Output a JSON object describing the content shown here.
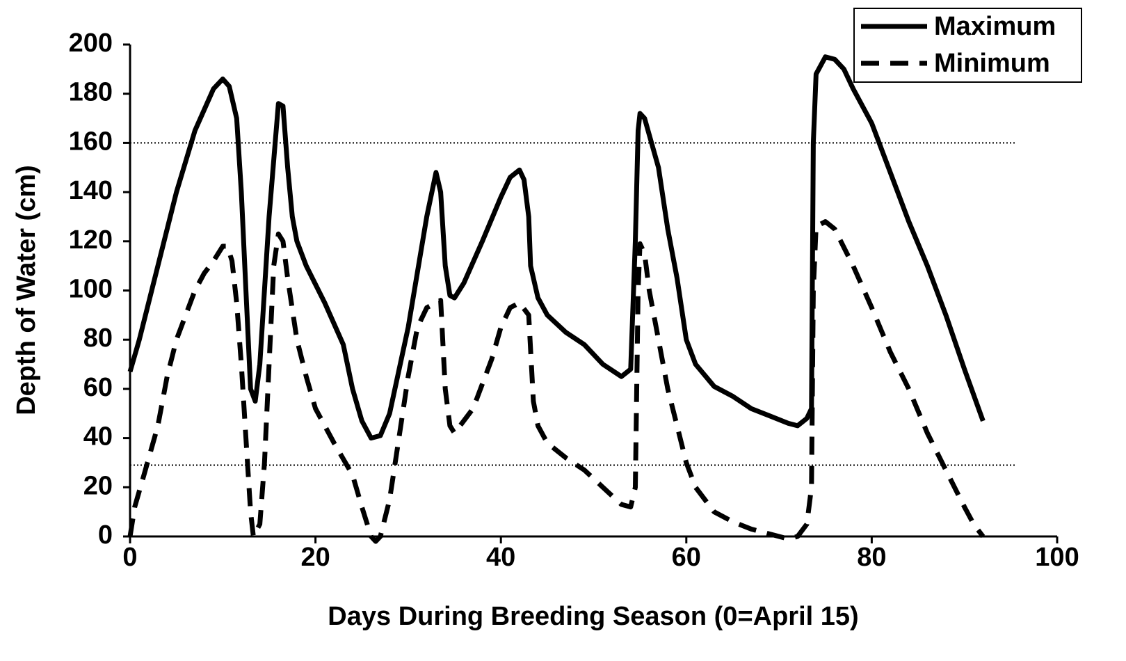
{
  "chart_data": {
    "type": "line",
    "xlabel": "Days During Breeding Season (0=April 15)",
    "ylabel": "Depth of Water (cm)",
    "xlim": [
      0,
      100
    ],
    "xticks": [
      0,
      20,
      40,
      60,
      80,
      100
    ],
    "ylim": [
      0,
      200
    ],
    "yticks": [
      0,
      20,
      40,
      60,
      80,
      100,
      120,
      140,
      160,
      180,
      200
    ],
    "reference_lines": [
      160,
      29
    ],
    "legend": "upper right",
    "series": [
      {
        "name": "Maximum",
        "color": "#000000",
        "style": "solid",
        "x": [
          0,
          1,
          3,
          5,
          7,
          9,
          10,
          10.7,
          11.5,
          12,
          12.5,
          13,
          13.5,
          14,
          15,
          16,
          16.5,
          17,
          17.5,
          18,
          19,
          21,
          23,
          24,
          25,
          26,
          27,
          28,
          30,
          32,
          33,
          33.5,
          34,
          34.5,
          35,
          36,
          38,
          40,
          41,
          42,
          42.5,
          43,
          43.2,
          44,
          45,
          47,
          49,
          51,
          53,
          54,
          54.5,
          54.8,
          55,
          55.5,
          57,
          58,
          59,
          60,
          61,
          63,
          65,
          67,
          69,
          71,
          72,
          73,
          73.5,
          73.7,
          74,
          75,
          76,
          77,
          78,
          80,
          82,
          84,
          86,
          88,
          90,
          92
        ],
        "values": [
          67,
          80,
          110,
          140,
          165,
          182,
          186,
          183,
          170,
          140,
          100,
          60,
          55,
          70,
          130,
          176,
          175,
          150,
          130,
          120,
          110,
          95,
          78,
          60,
          47,
          40,
          41,
          50,
          85,
          130,
          148,
          140,
          110,
          98,
          97,
          103,
          120,
          138,
          146,
          149,
          145,
          130,
          110,
          97,
          90,
          83,
          78,
          70,
          65,
          68,
          120,
          165,
          172,
          170,
          150,
          125,
          105,
          80,
          70,
          61,
          57,
          52,
          49,
          46,
          45,
          48,
          52,
          160,
          188,
          195,
          194,
          190,
          182,
          168,
          148,
          128,
          110,
          90,
          68,
          47
        ]
      },
      {
        "name": "Minimum",
        "color": "#000000",
        "style": "dashed",
        "x": [
          0,
          0.5,
          1.5,
          3,
          4,
          5,
          6,
          7,
          8,
          9,
          10,
          10.5,
          11,
          11.5,
          12,
          12.5,
          13,
          13.3,
          14,
          14.5,
          15,
          15.5,
          16,
          16.5,
          17,
          18,
          19,
          20,
          22,
          24,
          25,
          26,
          26.5,
          27,
          28,
          29,
          30,
          31,
          32,
          33,
          33.5,
          34,
          34.5,
          35,
          37,
          39,
          40,
          41,
          42,
          43,
          43.5,
          44,
          45,
          47,
          49,
          51,
          53,
          54,
          54.5,
          54.8,
          55,
          55.5,
          56,
          57,
          58,
          59,
          60,
          61,
          63,
          65,
          67,
          69,
          71,
          72,
          73,
          73.5,
          73.7,
          74,
          75,
          76,
          78,
          80,
          82,
          84,
          86,
          88,
          90,
          91,
          92
        ],
        "values": [
          0,
          12,
          25,
          45,
          65,
          80,
          90,
          100,
          107,
          112,
          118,
          118,
          112,
          95,
          70,
          40,
          10,
          0,
          5,
          30,
          70,
          110,
          123,
          120,
          105,
          80,
          65,
          52,
          38,
          25,
          12,
          0,
          -2,
          0,
          15,
          40,
          65,
          85,
          93,
          95,
          96,
          60,
          45,
          42,
          52,
          72,
          85,
          93,
          95,
          90,
          55,
          45,
          38,
          32,
          27,
          20,
          13,
          12,
          20,
          100,
          119,
          115,
          100,
          80,
          60,
          45,
          30,
          20,
          10,
          6,
          3,
          1,
          -1,
          0,
          5,
          20,
          100,
          126,
          128,
          125,
          110,
          93,
          75,
          60,
          42,
          27,
          12,
          5,
          0
        ]
      }
    ]
  }
}
